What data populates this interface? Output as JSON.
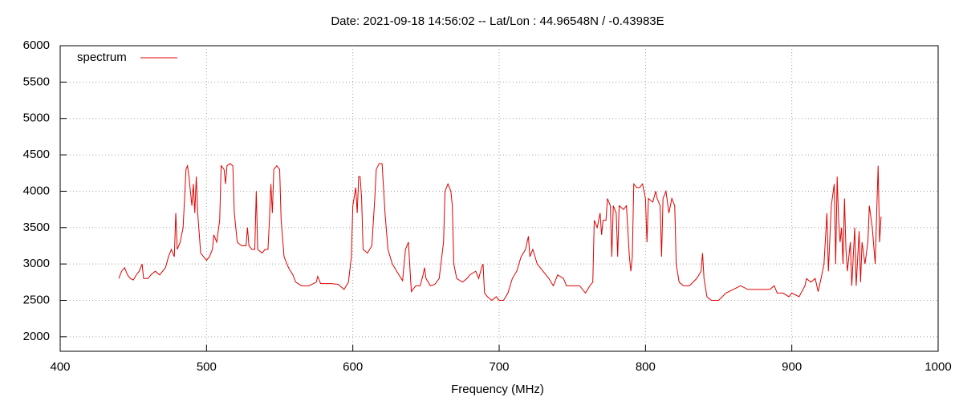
{
  "chart_data": {
    "type": "line",
    "title": "Date: 2021-09-18 14:56:02  --  Lat/Lon : 44.96548N / -0.43983E",
    "x_label": "Frequency (MHz)",
    "xlim": [
      400,
      1000
    ],
    "xticks": [
      400,
      500,
      600,
      700,
      800,
      900,
      1000
    ],
    "ylim": [
      1800,
      6000
    ],
    "yticks": [
      2000,
      2500,
      3000,
      3500,
      4000,
      4500,
      5000,
      5500,
      6000
    ],
    "grid": true,
    "legend": "top-left",
    "x": [
      440,
      442,
      444,
      446,
      448,
      450,
      452,
      454,
      456,
      457,
      460,
      462,
      465,
      468,
      470,
      472,
      474,
      476,
      478,
      479,
      480,
      482,
      484,
      486,
      487,
      488,
      490,
      491,
      492,
      493,
      494,
      496,
      498,
      500,
      502,
      504,
      505,
      507,
      509,
      510,
      512,
      513,
      514,
      516,
      518,
      519,
      521,
      524,
      527,
      528,
      529,
      531,
      533,
      534,
      535,
      538,
      540,
      542,
      543,
      544,
      545,
      546,
      548,
      550,
      551,
      553,
      556,
      559,
      561,
      565,
      570,
      575,
      576,
      578,
      585,
      590,
      594,
      597,
      599,
      600,
      602,
      603,
      604,
      605,
      606,
      607,
      610,
      613,
      615,
      616,
      618,
      620,
      622,
      624,
      627,
      630,
      634,
      636,
      638,
      639,
      640,
      643,
      646,
      648,
      649,
      650,
      653,
      656,
      659,
      662,
      663,
      665,
      667,
      668,
      669,
      671,
      675,
      678,
      680,
      684,
      686,
      688,
      689,
      690,
      692,
      695,
      698,
      700,
      703,
      706,
      709,
      712,
      715,
      718,
      720,
      721,
      723,
      726,
      730,
      734,
      737,
      740,
      744,
      746,
      750,
      755,
      759,
      762,
      764,
      765,
      767,
      769,
      770,
      771,
      773,
      774,
      776,
      777,
      778,
      780,
      781,
      782,
      785,
      787,
      789,
      790,
      791,
      792,
      794,
      796,
      798,
      800,
      801,
      802,
      805,
      807,
      808,
      810,
      811,
      812,
      814,
      816,
      818,
      820,
      821,
      823,
      826,
      830,
      835,
      838,
      839,
      840,
      842,
      845,
      850,
      855,
      860,
      865,
      870,
      875,
      880,
      885,
      888,
      890,
      894,
      898,
      900,
      905,
      909,
      910,
      913,
      916,
      918,
      920,
      922,
      924,
      925,
      927,
      929,
      930,
      931,
      932,
      933,
      934,
      935,
      936,
      937,
      938,
      940,
      941,
      943,
      944,
      946,
      947,
      948,
      950,
      952,
      953,
      955,
      957,
      958,
      959,
      960,
      961
    ],
    "series": [
      {
        "name": "spectrum",
        "color": "#e00000",
        "values": [
          2800,
          2900,
          2950,
          2850,
          2800,
          2780,
          2850,
          2900,
          3000,
          2800,
          2800,
          2850,
          2900,
          2850,
          2900,
          2950,
          3100,
          3200,
          3100,
          3700,
          3200,
          3300,
          3500,
          4300,
          4350,
          4200,
          3800,
          4100,
          3700,
          4200,
          3700,
          3150,
          3100,
          3050,
          3100,
          3200,
          3400,
          3300,
          3600,
          4350,
          4300,
          4100,
          4350,
          4380,
          4350,
          3700,
          3300,
          3250,
          3250,
          3500,
          3250,
          3200,
          3200,
          4000,
          3200,
          3150,
          3200,
          3200,
          3600,
          4100,
          3700,
          4300,
          4350,
          4300,
          3600,
          3100,
          2950,
          2850,
          2750,
          2700,
          2700,
          2750,
          2830,
          2730,
          2730,
          2720,
          2650,
          2750,
          3100,
          3800,
          4050,
          3700,
          4200,
          4200,
          3900,
          3200,
          3150,
          3250,
          3900,
          4300,
          4380,
          4380,
          3700,
          3200,
          3000,
          2900,
          2770,
          3200,
          3300,
          2950,
          2620,
          2700,
          2700,
          2850,
          2950,
          2800,
          2700,
          2720,
          2800,
          3300,
          4000,
          4100,
          4000,
          3800,
          3000,
          2800,
          2750,
          2800,
          2850,
          2900,
          2800,
          2950,
          3000,
          2600,
          2550,
          2500,
          2550,
          2500,
          2500,
          2600,
          2800,
          2900,
          3100,
          3200,
          3380,
          3100,
          3200,
          3000,
          2900,
          2800,
          2700,
          2850,
          2800,
          2700,
          2700,
          2700,
          2600,
          2700,
          2750,
          3600,
          3500,
          3700,
          3400,
          3600,
          3600,
          3900,
          3800,
          3100,
          3800,
          3700,
          3100,
          3800,
          3750,
          3800,
          3100,
          2900,
          3100,
          4100,
          4050,
          4050,
          4100,
          3900,
          3300,
          3900,
          3850,
          4000,
          3900,
          3800,
          3100,
          3900,
          4000,
          3700,
          3900,
          3800,
          3000,
          2750,
          2700,
          2700,
          2800,
          2900,
          3150,
          2800,
          2550,
          2500,
          2500,
          2600,
          2650,
          2700,
          2650,
          2650,
          2650,
          2650,
          2700,
          2600,
          2600,
          2550,
          2600,
          2550,
          2700,
          2800,
          2750,
          2800,
          2620,
          2800,
          3000,
          3700,
          2900,
          3800,
          4100,
          3000,
          4200,
          3600,
          3300,
          3500,
          3000,
          3900,
          3200,
          2900,
          3300,
          2700,
          3500,
          2700,
          3450,
          2750,
          3300,
          3000,
          3300,
          3800,
          3500,
          3000,
          3700,
          4350,
          3300,
          3650
        ]
      }
    ]
  }
}
